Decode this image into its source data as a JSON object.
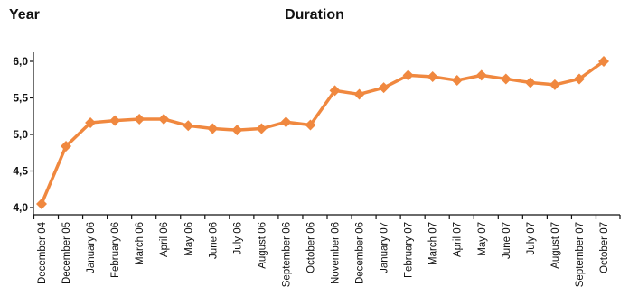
{
  "chart_data": {
    "type": "line",
    "title": "Duration",
    "ylabel": "Year",
    "xlabel": "",
    "ylim": [
      4.0,
      6.0
    ],
    "yticks": [
      "4,0",
      "4,5",
      "5,0",
      "5,5",
      "6,0"
    ],
    "yticks_values": [
      4.0,
      4.5,
      5.0,
      5.5,
      6.0
    ],
    "categories": [
      "December 04",
      "December 05",
      "January 06",
      "February 06",
      "March 06",
      "April 06",
      "May 06",
      "June 06",
      "July 06",
      "August  06",
      "September 06",
      "October 06",
      "November 06",
      "December 06",
      "January 07",
      "February 07",
      "March 07",
      "April 07",
      "May 07",
      "June 07",
      "July 07",
      "August 07",
      "September 07",
      "October 07"
    ],
    "series": [
      {
        "values": [
          4.05,
          4.84,
          5.16,
          5.19,
          5.21,
          5.21,
          5.12,
          5.08,
          5.06,
          5.08,
          5.17,
          5.13,
          5.6,
          5.55,
          5.64,
          5.81,
          5.79,
          5.74,
          5.81,
          5.76,
          5.71,
          5.68,
          5.76,
          6.0
        ],
        "color": "#f0883f"
      }
    ],
    "grid": false,
    "legend": "none"
  }
}
